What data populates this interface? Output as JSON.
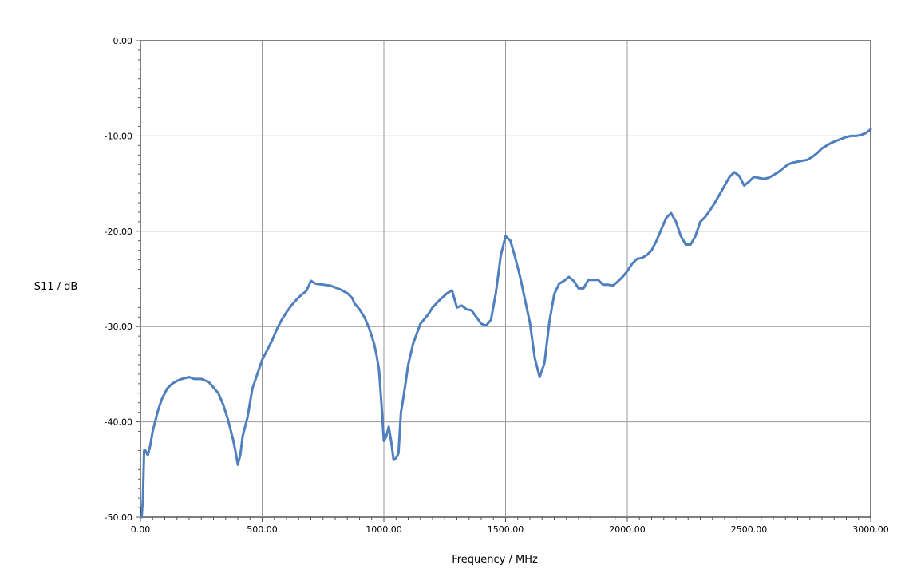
{
  "chart_data": {
    "type": "line",
    "title": "",
    "xlabel": "Frequency / MHz",
    "ylabel": "S11 / dB",
    "xlim": [
      0,
      3000
    ],
    "ylim": [
      -50,
      0
    ],
    "x_ticks": [
      0,
      500,
      1000,
      1500,
      2000,
      2500,
      3000
    ],
    "x_tick_labels": [
      "0.00",
      "500.00",
      "1000.00",
      "1500.00",
      "2000.00",
      "2500.00",
      "3000.00"
    ],
    "y_ticks": [
      0,
      -10,
      -20,
      -30,
      -40,
      -50
    ],
    "y_tick_labels": [
      "0.00",
      "-10.00",
      "-20.00",
      "-30.00",
      "-40.00",
      "-50.00"
    ],
    "grid": true,
    "line_color": "#4f7fbf",
    "series": [
      {
        "x": [
          5,
          10,
          15,
          20,
          30,
          40,
          50,
          60,
          70,
          80,
          90,
          100,
          110,
          130,
          150,
          170,
          200,
          220,
          250,
          280,
          300,
          320,
          340,
          360,
          380,
          390,
          400,
          410,
          420,
          440,
          460,
          480,
          500,
          520,
          540,
          560,
          580,
          600,
          620,
          640,
          660,
          680,
          690,
          700,
          720,
          750,
          780,
          800,
          820,
          850,
          870,
          880,
          900,
          920,
          940,
          960,
          970,
          980,
          990,
          1000,
          1010,
          1020,
          1030,
          1040,
          1050,
          1060,
          1070,
          1080,
          1090,
          1100,
          1120,
          1150,
          1180,
          1200,
          1230,
          1260,
          1280,
          1300,
          1320,
          1340,
          1360,
          1380,
          1400,
          1420,
          1440,
          1460,
          1480,
          1500,
          1520,
          1540,
          1560,
          1580,
          1600,
          1620,
          1640,
          1660,
          1680,
          1700,
          1720,
          1740,
          1760,
          1780,
          1800,
          1820,
          1840,
          1860,
          1880,
          1900,
          1920,
          1940,
          1960,
          1980,
          2000,
          2020,
          2040,
          2060,
          2080,
          2100,
          2120,
          2140,
          2160,
          2180,
          2200,
          2220,
          2240,
          2260,
          2280,
          2300,
          2320,
          2340,
          2360,
          2380,
          2400,
          2420,
          2440,
          2460,
          2480,
          2500,
          2520,
          2540,
          2560,
          2580,
          2600,
          2620,
          2640,
          2660,
          2680,
          2700,
          2720,
          2740,
          2760,
          2780,
          2800,
          2820,
          2840,
          2860,
          2880,
          2900,
          2920,
          2940,
          2960,
          2980,
          3000
        ],
        "y": [
          -50.0,
          -48.0,
          -43.0,
          -43.0,
          -43.5,
          -42.5,
          -41.0,
          -40.0,
          -39.0,
          -38.2,
          -37.5,
          -37.0,
          -36.5,
          -36.0,
          -35.7,
          -35.5,
          -35.3,
          -35.5,
          -35.5,
          -35.8,
          -36.4,
          -37.0,
          -38.2,
          -39.8,
          -41.8,
          -43.0,
          -44.5,
          -43.5,
          -41.5,
          -39.5,
          -36.5,
          -35.0,
          -33.5,
          -32.5,
          -31.5,
          -30.3,
          -29.3,
          -28.5,
          -27.8,
          -27.2,
          -26.7,
          -26.3,
          -25.8,
          -25.2,
          -25.5,
          -25.6,
          -25.7,
          -25.9,
          -26.1,
          -26.5,
          -27.0,
          -27.6,
          -28.2,
          -29.0,
          -30.2,
          -31.8,
          -33.0,
          -34.5,
          -38.0,
          -42.0,
          -41.5,
          -40.5,
          -42.0,
          -44.0,
          -43.8,
          -43.3,
          -39.0,
          -37.5,
          -35.8,
          -34.0,
          -31.8,
          -29.7,
          -28.8,
          -28.0,
          -27.2,
          -26.5,
          -26.2,
          -28.0,
          -27.8,
          -28.2,
          -28.3,
          -29.0,
          -29.7,
          -29.9,
          -29.3,
          -26.5,
          -22.6,
          -20.5,
          -21.0,
          -22.8,
          -24.8,
          -27.2,
          -29.6,
          -33.3,
          -35.3,
          -33.8,
          -29.5,
          -26.6,
          -25.5,
          -25.2,
          -24.8,
          -25.2,
          -26.0,
          -26.0,
          -25.1,
          -25.1,
          -25.1,
          -25.6,
          -25.6,
          -25.7,
          -25.3,
          -24.8,
          -24.2,
          -23.4,
          -22.9,
          -22.8,
          -22.5,
          -22.0,
          -21.0,
          -19.8,
          -18.6,
          -18.1,
          -19.0,
          -20.5,
          -21.4,
          -21.4,
          -20.5,
          -19.0,
          -18.5,
          -17.8,
          -17.0,
          -16.1,
          -15.2,
          -14.3,
          -13.8,
          -14.2,
          -15.2,
          -14.8,
          -14.3,
          -14.4,
          -14.5,
          -14.4,
          -14.1,
          -13.8,
          -13.4,
          -13.0,
          -12.8,
          -12.7,
          -12.6,
          -12.5,
          -12.2,
          -11.8,
          -11.3,
          -11.0,
          -10.7,
          -10.5,
          -10.3,
          -10.1,
          -10.0,
          -10.0,
          -9.9,
          -9.7,
          -9.3
        ]
      }
    ]
  }
}
